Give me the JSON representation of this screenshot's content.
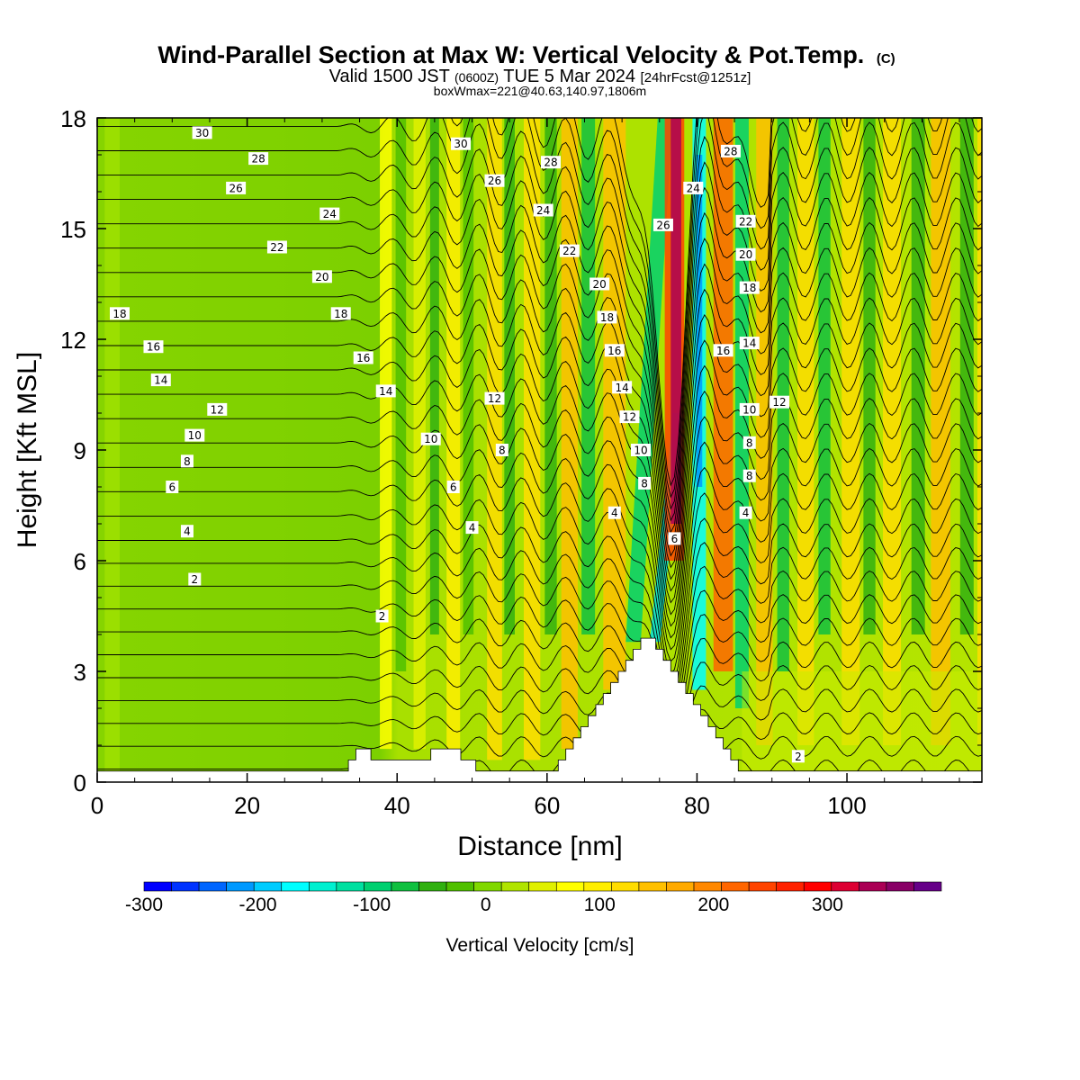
{
  "chart_data": {
    "type": "heatmap",
    "title": "Wind-Parallel Section at Max W: Vertical Velocity & Pot.Temp.",
    "title_mark": "(C)",
    "subtitle_parts": [
      "Valid 1500 JST",
      "(0600Z)",
      "TUE 5 Mar 2024",
      "[24hrFcst@1251z]"
    ],
    "subtitle2": "boxWmax=221@40.63,140.97,1806m",
    "xlabel": "Distance [nm]",
    "ylabel": "Height [Kft MSL]",
    "xlim": [
      0,
      118
    ],
    "ylim": [
      0,
      18
    ],
    "x_ticks": [
      0,
      20,
      40,
      60,
      80,
      100
    ],
    "y_ticks": [
      0,
      3,
      6,
      9,
      12,
      15,
      18
    ],
    "x_tick_labels": [
      "0",
      "20",
      "40",
      "60",
      "80",
      "100"
    ],
    "y_tick_labels": [
      "0",
      "3",
      "6",
      "9",
      "12",
      "15",
      "18"
    ],
    "colorbar": {
      "label": "Vertical Velocity [cm/s]",
      "min": -300,
      "max": 375,
      "step": 25,
      "tick_values": [
        -300,
        -200,
        -100,
        0,
        100,
        200,
        300
      ],
      "tick_labels": [
        "-300",
        "-200",
        "-100",
        "0",
        "100",
        "200",
        "300"
      ],
      "colors": [
        "#0000ff",
        "#0033ff",
        "#0066ff",
        "#0099ff",
        "#00ccff",
        "#00ffff",
        "#00f0d0",
        "#00e0a0",
        "#00d070",
        "#10c040",
        "#30b010",
        "#50c000",
        "#80d800",
        "#b0e400",
        "#e0f000",
        "#ffff00",
        "#ffee00",
        "#ffdd00",
        "#ffc000",
        "#ffaa00",
        "#ff8800",
        "#ff6600",
        "#ff4400",
        "#ff2200",
        "#ff0000",
        "#dd0033",
        "#aa0055",
        "#880066",
        "#660088"
      ]
    },
    "terrain": [
      {
        "x": 0,
        "h": 0.3
      },
      {
        "x": 33.5,
        "h": 0.3
      },
      {
        "x": 33.5,
        "h": 0.6
      },
      {
        "x": 34.5,
        "h": 0.6
      },
      {
        "x": 34.5,
        "h": 0.9
      },
      {
        "x": 36.5,
        "h": 0.9
      },
      {
        "x": 36.5,
        "h": 0.6
      },
      {
        "x": 44.5,
        "h": 0.6
      },
      {
        "x": 44.5,
        "h": 0.9
      },
      {
        "x": 48.5,
        "h": 0.9
      },
      {
        "x": 48.5,
        "h": 0.6
      },
      {
        "x": 50.5,
        "h": 0.6
      },
      {
        "x": 50.5,
        "h": 0.3
      },
      {
        "x": 61.5,
        "h": 0.3
      },
      {
        "x": 61.5,
        "h": 0.6
      },
      {
        "x": 62.5,
        "h": 0.6
      },
      {
        "x": 62.5,
        "h": 0.9
      },
      {
        "x": 63.5,
        "h": 0.9
      },
      {
        "x": 63.5,
        "h": 1.2
      },
      {
        "x": 64.5,
        "h": 1.2
      },
      {
        "x": 64.5,
        "h": 1.5
      },
      {
        "x": 65.5,
        "h": 1.5
      },
      {
        "x": 65.5,
        "h": 1.8
      },
      {
        "x": 66.5,
        "h": 1.8
      },
      {
        "x": 66.5,
        "h": 2.1
      },
      {
        "x": 67.5,
        "h": 2.1
      },
      {
        "x": 67.5,
        "h": 2.4
      },
      {
        "x": 68.5,
        "h": 2.4
      },
      {
        "x": 68.5,
        "h": 2.7
      },
      {
        "x": 69.5,
        "h": 2.7
      },
      {
        "x": 69.5,
        "h": 3.0
      },
      {
        "x": 70.5,
        "h": 3.0
      },
      {
        "x": 70.5,
        "h": 3.3
      },
      {
        "x": 71.5,
        "h": 3.3
      },
      {
        "x": 71.5,
        "h": 3.6
      },
      {
        "x": 72.5,
        "h": 3.6
      },
      {
        "x": 72.5,
        "h": 3.9
      },
      {
        "x": 74.5,
        "h": 3.9
      },
      {
        "x": 74.5,
        "h": 3.6
      },
      {
        "x": 75.5,
        "h": 3.6
      },
      {
        "x": 75.5,
        "h": 3.3
      },
      {
        "x": 76.5,
        "h": 3.3
      },
      {
        "x": 76.5,
        "h": 3.0
      },
      {
        "x": 77.5,
        "h": 3.0
      },
      {
        "x": 77.5,
        "h": 2.7
      },
      {
        "x": 78.5,
        "h": 2.7
      },
      {
        "x": 78.5,
        "h": 2.4
      },
      {
        "x": 79.5,
        "h": 2.4
      },
      {
        "x": 79.5,
        "h": 2.1
      },
      {
        "x": 80.5,
        "h": 2.1
      },
      {
        "x": 80.5,
        "h": 1.8
      },
      {
        "x": 81.5,
        "h": 1.8
      },
      {
        "x": 81.5,
        "h": 1.5
      },
      {
        "x": 82.5,
        "h": 1.5
      },
      {
        "x": 82.5,
        "h": 1.2
      },
      {
        "x": 83.5,
        "h": 1.2
      },
      {
        "x": 83.5,
        "h": 0.9
      },
      {
        "x": 84.5,
        "h": 0.9
      },
      {
        "x": 84.5,
        "h": 0.6
      },
      {
        "x": 85.5,
        "h": 0.6
      },
      {
        "x": 85.5,
        "h": 0.3
      },
      {
        "x": 118,
        "h": 0.3
      }
    ],
    "theta_contours": [
      2,
      4,
      6,
      8,
      10,
      12,
      14,
      16,
      18,
      20,
      22,
      24,
      26,
      28,
      30
    ],
    "contour_labels": [
      {
        "x": 14,
        "y": 17.6,
        "v": "30"
      },
      {
        "x": 21.5,
        "y": 16.9,
        "v": "28"
      },
      {
        "x": 18.5,
        "y": 16.1,
        "v": "26"
      },
      {
        "x": 31,
        "y": 15.4,
        "v": "24"
      },
      {
        "x": 24,
        "y": 14.5,
        "v": "22"
      },
      {
        "x": 30,
        "y": 13.7,
        "v": "20"
      },
      {
        "x": 3,
        "y": 12.7,
        "v": "18"
      },
      {
        "x": 32.5,
        "y": 12.7,
        "v": "18"
      },
      {
        "x": 7.5,
        "y": 11.8,
        "v": "16"
      },
      {
        "x": 35.5,
        "y": 11.5,
        "v": "16"
      },
      {
        "x": 8.5,
        "y": 10.9,
        "v": "14"
      },
      {
        "x": 38.5,
        "y": 10.6,
        "v": "14"
      },
      {
        "x": 16,
        "y": 10.1,
        "v": "12"
      },
      {
        "x": 53,
        "y": 10.4,
        "v": "12"
      },
      {
        "x": 13,
        "y": 9.4,
        "v": "10"
      },
      {
        "x": 44.5,
        "y": 9.3,
        "v": "10"
      },
      {
        "x": 12,
        "y": 8.7,
        "v": "8"
      },
      {
        "x": 54,
        "y": 9.0,
        "v": "8"
      },
      {
        "x": 10,
        "y": 8.0,
        "v": "6"
      },
      {
        "x": 47.5,
        "y": 8.0,
        "v": "6"
      },
      {
        "x": 12,
        "y": 6.8,
        "v": "4"
      },
      {
        "x": 50,
        "y": 6.9,
        "v": "4"
      },
      {
        "x": 13,
        "y": 5.5,
        "v": "2"
      },
      {
        "x": 38,
        "y": 4.5,
        "v": "2"
      },
      {
        "x": 48.5,
        "y": 17.3,
        "v": "30"
      },
      {
        "x": 60.5,
        "y": 16.8,
        "v": "28"
      },
      {
        "x": 53,
        "y": 16.3,
        "v": "26"
      },
      {
        "x": 59.5,
        "y": 15.5,
        "v": "24"
      },
      {
        "x": 63,
        "y": 14.4,
        "v": "22"
      },
      {
        "x": 67,
        "y": 13.5,
        "v": "20"
      },
      {
        "x": 68,
        "y": 12.6,
        "v": "18"
      },
      {
        "x": 69,
        "y": 11.7,
        "v": "16"
      },
      {
        "x": 70,
        "y": 10.7,
        "v": "14"
      },
      {
        "x": 71,
        "y": 9.9,
        "v": "12"
      },
      {
        "x": 72.5,
        "y": 9.0,
        "v": "10"
      },
      {
        "x": 73,
        "y": 8.1,
        "v": "8"
      },
      {
        "x": 69,
        "y": 7.3,
        "v": "4"
      },
      {
        "x": 77,
        "y": 6.6,
        "v": "6"
      },
      {
        "x": 75.5,
        "y": 15.1,
        "v": "26"
      },
      {
        "x": 79.5,
        "y": 16.1,
        "v": "24"
      },
      {
        "x": 84.5,
        "y": 17.1,
        "v": "28"
      },
      {
        "x": 86.5,
        "y": 15.2,
        "v": "22"
      },
      {
        "x": 86.5,
        "y": 14.3,
        "v": "20"
      },
      {
        "x": 87,
        "y": 13.4,
        "v": "18"
      },
      {
        "x": 83.5,
        "y": 11.7,
        "v": "16"
      },
      {
        "x": 87,
        "y": 11.9,
        "v": "14"
      },
      {
        "x": 91,
        "y": 10.3,
        "v": "12"
      },
      {
        "x": 87,
        "y": 10.1,
        "v": "10"
      },
      {
        "x": 87,
        "y": 9.2,
        "v": "8"
      },
      {
        "x": 87,
        "y": 8.3,
        "v": "8"
      },
      {
        "x": 86.5,
        "y": 7.3,
        "v": "4"
      },
      {
        "x": 93.5,
        "y": 0.7,
        "v": "2"
      }
    ]
  }
}
